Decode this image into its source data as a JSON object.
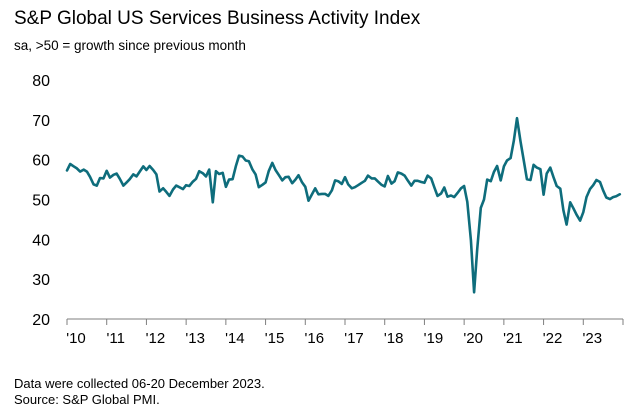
{
  "title": "S&P Global US Services Business Activity Index",
  "subtitle": "sa, >50 = growth since previous month",
  "notes": [
    "Data were collected 06-20 December 2023.",
    "Source: S&P Global PMI."
  ],
  "colors": {
    "line": "#0e6d7c",
    "axis": "#7f7f7f",
    "text": "#000000"
  },
  "chart_data": {
    "type": "line",
    "title": "S&P Global US Services Business Activity Index",
    "subtitle": "sa, >50 = growth since previous month",
    "xlabel": "",
    "ylabel": "",
    "ylim": [
      20,
      80
    ],
    "yticks": [
      20,
      30,
      40,
      50,
      60,
      70,
      80
    ],
    "xlim": [
      2010.0,
      2024.0
    ],
    "xticks": [
      {
        "x": 2010,
        "label": "'10"
      },
      {
        "x": 2011,
        "label": "'11"
      },
      {
        "x": 2012,
        "label": "'12"
      },
      {
        "x": 2013,
        "label": "'13"
      },
      {
        "x": 2014,
        "label": "'14"
      },
      {
        "x": 2015,
        "label": "'15"
      },
      {
        "x": 2016,
        "label": "'16"
      },
      {
        "x": 2017,
        "label": "'17"
      },
      {
        "x": 2018,
        "label": "'18"
      },
      {
        "x": 2019,
        "label": "'19"
      },
      {
        "x": 2020,
        "label": "'20"
      },
      {
        "x": 2021,
        "label": "'21"
      },
      {
        "x": 2022,
        "label": "'22"
      },
      {
        "x": 2023,
        "label": "'23"
      }
    ],
    "grid": false,
    "legend": "none",
    "series": [
      {
        "points": [
          [
            2010.0,
            57.3
          ],
          [
            2010.08,
            58.9
          ],
          [
            2010.17,
            58.3
          ],
          [
            2010.25,
            57.8
          ],
          [
            2010.33,
            57.0
          ],
          [
            2010.42,
            57.5
          ],
          [
            2010.5,
            57.0
          ],
          [
            2010.58,
            55.7
          ],
          [
            2010.67,
            53.8
          ],
          [
            2010.75,
            53.5
          ],
          [
            2010.83,
            55.4
          ],
          [
            2010.92,
            55.3
          ],
          [
            2011.0,
            57.2
          ],
          [
            2011.08,
            55.5
          ],
          [
            2011.17,
            56.2
          ],
          [
            2011.25,
            56.5
          ],
          [
            2011.33,
            55.2
          ],
          [
            2011.42,
            53.5
          ],
          [
            2011.5,
            54.3
          ],
          [
            2011.58,
            55.1
          ],
          [
            2011.67,
            56.3
          ],
          [
            2011.75,
            55.8
          ],
          [
            2011.83,
            57.0
          ],
          [
            2011.92,
            58.3
          ],
          [
            2012.0,
            57.4
          ],
          [
            2012.08,
            58.4
          ],
          [
            2012.17,
            57.4
          ],
          [
            2012.25,
            56.3
          ],
          [
            2012.33,
            52.0
          ],
          [
            2012.42,
            52.8
          ],
          [
            2012.5,
            51.9
          ],
          [
            2012.58,
            50.9
          ],
          [
            2012.67,
            52.5
          ],
          [
            2012.75,
            53.5
          ],
          [
            2012.83,
            53.1
          ],
          [
            2012.92,
            52.6
          ],
          [
            2013.0,
            53.6
          ],
          [
            2013.08,
            53.4
          ],
          [
            2013.17,
            54.5
          ],
          [
            2013.25,
            55.2
          ],
          [
            2013.33,
            57.1
          ],
          [
            2013.42,
            56.6
          ],
          [
            2013.5,
            55.8
          ],
          [
            2013.58,
            57.5
          ],
          [
            2013.67,
            49.3
          ],
          [
            2013.75,
            57.1
          ],
          [
            2013.83,
            56.4
          ],
          [
            2013.92,
            56.7
          ],
          [
            2014.0,
            53.2
          ],
          [
            2014.08,
            55.0
          ],
          [
            2014.17,
            55.1
          ],
          [
            2014.25,
            58.3
          ],
          [
            2014.33,
            61.0
          ],
          [
            2014.42,
            60.8
          ],
          [
            2014.5,
            59.8
          ],
          [
            2014.58,
            59.6
          ],
          [
            2014.67,
            57.5
          ],
          [
            2014.75,
            56.3
          ],
          [
            2014.83,
            53.1
          ],
          [
            2014.92,
            53.7
          ],
          [
            2015.0,
            54.3
          ],
          [
            2015.08,
            57.1
          ],
          [
            2015.17,
            59.2
          ],
          [
            2015.25,
            57.4
          ],
          [
            2015.33,
            56.2
          ],
          [
            2015.42,
            54.8
          ],
          [
            2015.5,
            55.6
          ],
          [
            2015.58,
            55.7
          ],
          [
            2015.67,
            54.1
          ],
          [
            2015.75,
            55.0
          ],
          [
            2015.83,
            56.1
          ],
          [
            2015.92,
            54.3
          ],
          [
            2016.0,
            53.2
          ],
          [
            2016.08,
            49.7
          ],
          [
            2016.17,
            51.3
          ],
          [
            2016.25,
            52.8
          ],
          [
            2016.33,
            51.3
          ],
          [
            2016.42,
            51.4
          ],
          [
            2016.5,
            51.4
          ],
          [
            2016.58,
            50.9
          ],
          [
            2016.67,
            52.3
          ],
          [
            2016.75,
            54.8
          ],
          [
            2016.83,
            54.6
          ],
          [
            2016.92,
            53.9
          ],
          [
            2017.0,
            55.6
          ],
          [
            2017.08,
            53.8
          ],
          [
            2017.17,
            52.8
          ],
          [
            2017.25,
            53.1
          ],
          [
            2017.33,
            53.6
          ],
          [
            2017.42,
            54.2
          ],
          [
            2017.5,
            54.7
          ],
          [
            2017.58,
            56.0
          ],
          [
            2017.67,
            55.3
          ],
          [
            2017.75,
            55.3
          ],
          [
            2017.83,
            54.5
          ],
          [
            2017.92,
            53.7
          ],
          [
            2018.0,
            53.3
          ],
          [
            2018.08,
            55.9
          ],
          [
            2018.17,
            54.0
          ],
          [
            2018.25,
            54.6
          ],
          [
            2018.33,
            56.8
          ],
          [
            2018.42,
            56.5
          ],
          [
            2018.5,
            56.0
          ],
          [
            2018.58,
            54.8
          ],
          [
            2018.67,
            53.5
          ],
          [
            2018.75,
            54.7
          ],
          [
            2018.83,
            54.7
          ],
          [
            2018.92,
            54.4
          ],
          [
            2019.0,
            54.2
          ],
          [
            2019.08,
            56.0
          ],
          [
            2019.17,
            55.3
          ],
          [
            2019.25,
            53.0
          ],
          [
            2019.33,
            50.9
          ],
          [
            2019.42,
            51.5
          ],
          [
            2019.5,
            53.0
          ],
          [
            2019.58,
            50.7
          ],
          [
            2019.67,
            51.0
          ],
          [
            2019.75,
            50.6
          ],
          [
            2019.83,
            51.6
          ],
          [
            2019.92,
            52.8
          ],
          [
            2020.0,
            53.4
          ],
          [
            2020.08,
            49.4
          ],
          [
            2020.17,
            39.8
          ],
          [
            2020.25,
            26.7
          ],
          [
            2020.33,
            37.5
          ],
          [
            2020.42,
            47.9
          ],
          [
            2020.5,
            50.0
          ],
          [
            2020.58,
            55.0
          ],
          [
            2020.67,
            54.6
          ],
          [
            2020.75,
            56.9
          ],
          [
            2020.83,
            58.4
          ],
          [
            2020.92,
            54.8
          ],
          [
            2021.0,
            58.3
          ],
          [
            2021.08,
            59.8
          ],
          [
            2021.17,
            60.4
          ],
          [
            2021.25,
            64.7
          ],
          [
            2021.33,
            70.4
          ],
          [
            2021.42,
            64.6
          ],
          [
            2021.5,
            59.9
          ],
          [
            2021.58,
            55.1
          ],
          [
            2021.67,
            54.9
          ],
          [
            2021.75,
            58.7
          ],
          [
            2021.83,
            58.0
          ],
          [
            2021.92,
            57.6
          ],
          [
            2022.0,
            51.2
          ],
          [
            2022.08,
            56.5
          ],
          [
            2022.17,
            58.0
          ],
          [
            2022.25,
            55.6
          ],
          [
            2022.33,
            53.4
          ],
          [
            2022.42,
            52.7
          ],
          [
            2022.5,
            47.3
          ],
          [
            2022.58,
            43.7
          ],
          [
            2022.67,
            49.3
          ],
          [
            2022.75,
            47.8
          ],
          [
            2022.83,
            46.2
          ],
          [
            2022.92,
            44.7
          ],
          [
            2023.0,
            46.8
          ],
          [
            2023.08,
            50.6
          ],
          [
            2023.17,
            52.6
          ],
          [
            2023.25,
            53.6
          ],
          [
            2023.33,
            54.9
          ],
          [
            2023.42,
            54.4
          ],
          [
            2023.5,
            52.3
          ],
          [
            2023.58,
            50.5
          ],
          [
            2023.67,
            50.1
          ],
          [
            2023.75,
            50.6
          ],
          [
            2023.83,
            50.8
          ],
          [
            2023.92,
            51.3
          ]
        ]
      }
    ]
  }
}
